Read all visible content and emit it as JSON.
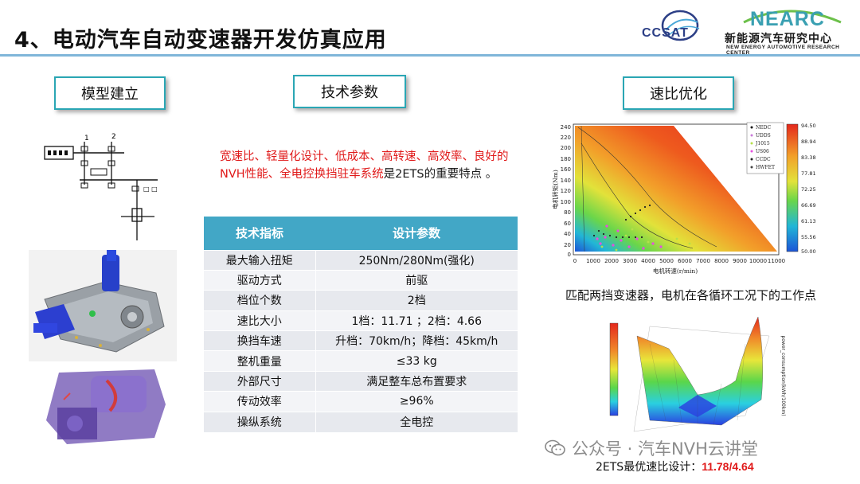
{
  "header": {
    "title": "4、电动汽车自动变速器开发仿真应用",
    "logo_ccsat": "CCSAT",
    "logo_nearc": "NEARC",
    "logo_nearc_cn": "新能源汽车研究中心",
    "logo_nearc_en": "NEW ENERGY AUTOMOTIVE RESEARCH CENTER"
  },
  "sections": {
    "model": "模型建立",
    "tech": "技术参数",
    "ratio": "速比优化"
  },
  "intro": {
    "highlight": "宽速比、轻量化设计、低成本、高转速、高效率、良好的NVH性能、全电控换挡驻车系统",
    "rest": "是2ETS的重要特点 。"
  },
  "table": {
    "headers": [
      "技术指标",
      "设计参数"
    ],
    "rows": [
      [
        "最大输入扭矩",
        "250Nm/280Nm(强化)"
      ],
      [
        "驱动方式",
        "前驱"
      ],
      [
        "档位个数",
        "2档"
      ],
      [
        "速比大小",
        "1档：11.71 ；2档：4.66"
      ],
      [
        "换挡车速",
        "升档：70km/h；降档：45km/h"
      ],
      [
        "整机重量",
        "≤33 kg"
      ],
      [
        "外部尺寸",
        "满足整车总布置要求"
      ],
      [
        "传动效率",
        "≥96%"
      ],
      [
        "操纵系统",
        "全电控"
      ]
    ]
  },
  "chart1": {
    "ylabel": "电机转矩(Nm)",
    "xlabel": "电机转速(r/min)",
    "legend": [
      "NEDC",
      "UDDS",
      "J1015",
      "US06",
      "CCDC",
      "HWFET"
    ],
    "legend_colors": [
      "#111111",
      "#c87ad9",
      "#b5e04a",
      "#e64fe0",
      "#222222",
      "#444444"
    ],
    "colorbar_ticks": [
      "94.50",
      "88.94",
      "83.38",
      "77.81",
      "72.25",
      "66.69",
      "61.13",
      "55.56",
      "50.00"
    ],
    "caption": "匹配两挡变速器，电机在各循环工况下的工作点"
  },
  "chart2": {
    "caption_prefix": "2ETS最优速比设计：",
    "caption_value": "11.78/4.64"
  },
  "watermark": "公众号 · 汽车NVH云讲堂",
  "colors": {
    "accent": "#42a7c6",
    "box_border": "#2aa6b4",
    "highlight": "#e01a1a",
    "rule": "#7fb6d9"
  }
}
